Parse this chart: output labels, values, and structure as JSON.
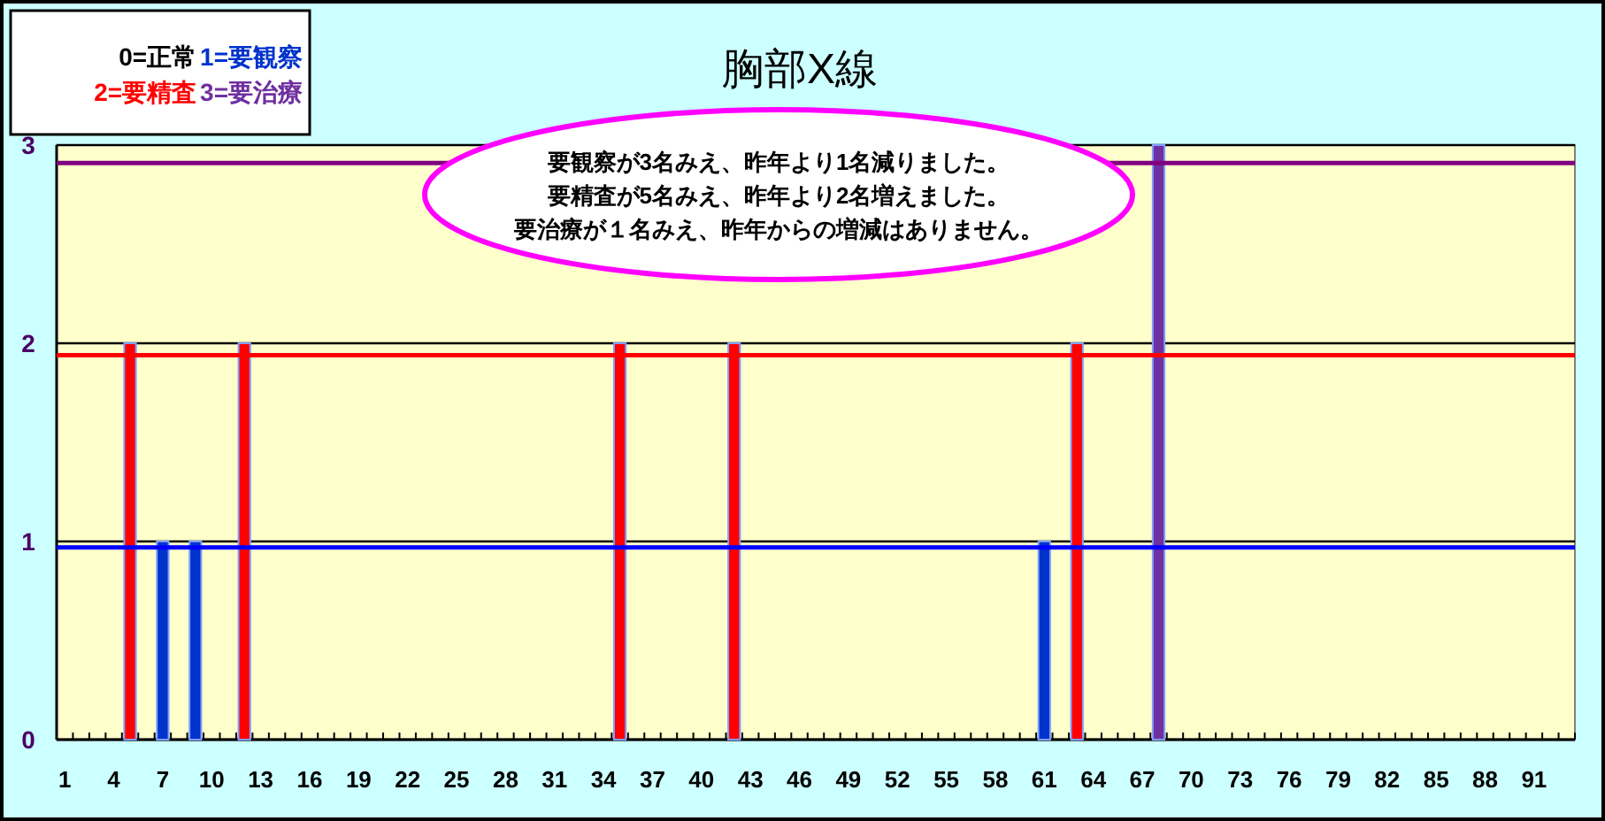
{
  "chart_data": {
    "type": "bar",
    "title": "胸部X線",
    "categories": [
      "1",
      null,
      null,
      "4",
      null,
      null,
      "7",
      null,
      null,
      "10",
      null,
      null,
      "13",
      null,
      null,
      "16",
      null,
      null,
      "19",
      null,
      null,
      "22",
      null,
      null,
      "25",
      null,
      null,
      "28",
      null,
      null,
      "31",
      null,
      null,
      "34",
      null,
      null,
      "37",
      null,
      null,
      "40",
      null,
      null,
      "43",
      null,
      null,
      "46",
      null,
      null,
      "49",
      null,
      null,
      "52",
      null,
      null,
      "55",
      null,
      null,
      "58",
      null,
      null,
      "61",
      null,
      null,
      "64",
      null,
      null,
      "67",
      null,
      null,
      "70",
      null,
      null,
      "73",
      null,
      null,
      "76",
      null,
      null,
      "79",
      null,
      null,
      "82",
      null,
      null,
      "85",
      null,
      null,
      "88",
      null,
      null,
      "91",
      null,
      null
    ],
    "series": [
      {
        "name": "0=正常",
        "color": "#000000",
        "values": [
          0,
          0,
          0,
          0,
          null,
          0,
          null,
          0,
          null,
          0,
          0,
          null,
          0,
          0,
          0,
          0,
          0,
          0,
          0,
          0,
          0,
          0,
          0,
          0,
          0,
          0,
          0,
          0,
          0,
          0,
          0,
          0,
          0,
          0,
          null,
          0,
          0,
          0,
          0,
          0,
          0,
          null,
          0,
          0,
          0,
          0,
          0,
          0,
          0,
          0,
          0,
          0,
          0,
          0,
          0,
          0,
          0,
          0,
          0,
          0,
          null,
          0,
          null,
          0,
          0,
          0,
          0,
          null,
          0,
          0,
          0,
          0,
          0,
          0,
          0,
          0,
          0,
          0,
          0,
          0,
          0,
          0,
          0,
          0,
          0,
          0,
          0,
          0,
          0,
          0,
          0,
          0,
          0
        ]
      },
      {
        "name": "1=要観察",
        "color": "#0033cc",
        "values": [
          null,
          null,
          null,
          null,
          null,
          null,
          1,
          null,
          1,
          null,
          null,
          null,
          null,
          null,
          null,
          null,
          null,
          null,
          null,
          null,
          null,
          null,
          null,
          null,
          null,
          null,
          null,
          null,
          null,
          null,
          null,
          null,
          null,
          null,
          null,
          null,
          null,
          null,
          null,
          null,
          null,
          null,
          null,
          null,
          null,
          null,
          null,
          null,
          null,
          null,
          null,
          null,
          null,
          null,
          null,
          null,
          null,
          null,
          null,
          null,
          1,
          null,
          null,
          null,
          null,
          null,
          null,
          null,
          null,
          null,
          null,
          null,
          null,
          null,
          null,
          null,
          null,
          null,
          null,
          null,
          null,
          null,
          null,
          null,
          null,
          null,
          null,
          null,
          null,
          null,
          null,
          null,
          null
        ]
      },
      {
        "name": "2=要精査",
        "color": "#ff0000",
        "values": [
          null,
          null,
          null,
          null,
          2,
          null,
          null,
          null,
          null,
          null,
          null,
          2,
          null,
          null,
          null,
          null,
          null,
          null,
          null,
          null,
          null,
          null,
          null,
          null,
          null,
          null,
          null,
          null,
          null,
          null,
          null,
          null,
          null,
          null,
          2,
          null,
          null,
          null,
          null,
          null,
          null,
          2,
          null,
          null,
          null,
          null,
          null,
          null,
          null,
          null,
          null,
          null,
          null,
          null,
          null,
          null,
          null,
          null,
          null,
          null,
          null,
          null,
          2,
          null,
          null,
          null,
          null,
          null,
          null,
          null,
          null,
          null,
          null,
          null,
          null,
          null,
          null,
          null,
          null,
          null,
          null,
          null,
          null,
          null,
          null,
          null,
          null,
          null,
          null,
          null,
          null,
          null,
          null
        ]
      },
      {
        "name": "3=要治療",
        "color": "#7030a0",
        "values": [
          null,
          null,
          null,
          null,
          null,
          null,
          null,
          null,
          null,
          null,
          null,
          null,
          null,
          null,
          null,
          null,
          null,
          null,
          null,
          null,
          null,
          null,
          null,
          null,
          null,
          null,
          null,
          null,
          null,
          null,
          null,
          null,
          null,
          null,
          null,
          null,
          null,
          null,
          null,
          null,
          null,
          null,
          null,
          null,
          null,
          null,
          null,
          null,
          null,
          null,
          null,
          null,
          null,
          null,
          null,
          null,
          null,
          null,
          null,
          null,
          null,
          null,
          null,
          null,
          null,
          null,
          null,
          3,
          null,
          null,
          null,
          null,
          null,
          null,
          null,
          null,
          null,
          null,
          null,
          null,
          null,
          null,
          null,
          null,
          null,
          null,
          null,
          null,
          null,
          null,
          null,
          null,
          null
        ]
      }
    ],
    "ylim": [
      0,
      3
    ],
    "yticks": [
      0,
      1,
      2,
      3
    ],
    "grid": "y",
    "legend": "top left",
    "ref_lines": [
      {
        "axis": "y",
        "value": 0.97,
        "color": "#0000ff"
      },
      {
        "axis": "y",
        "value": 1.94,
        "color": "#ff0000"
      },
      {
        "axis": "y",
        "value": 2.91,
        "color": "#800080"
      }
    ],
    "annotations": [
      "要観察が3名みえ、昨年より1名減りました。",
      "要精査が5名みえ、昨年より2名増えました。",
      "要治療が１名みえ、昨年からの増減はありません。"
    ]
  }
}
